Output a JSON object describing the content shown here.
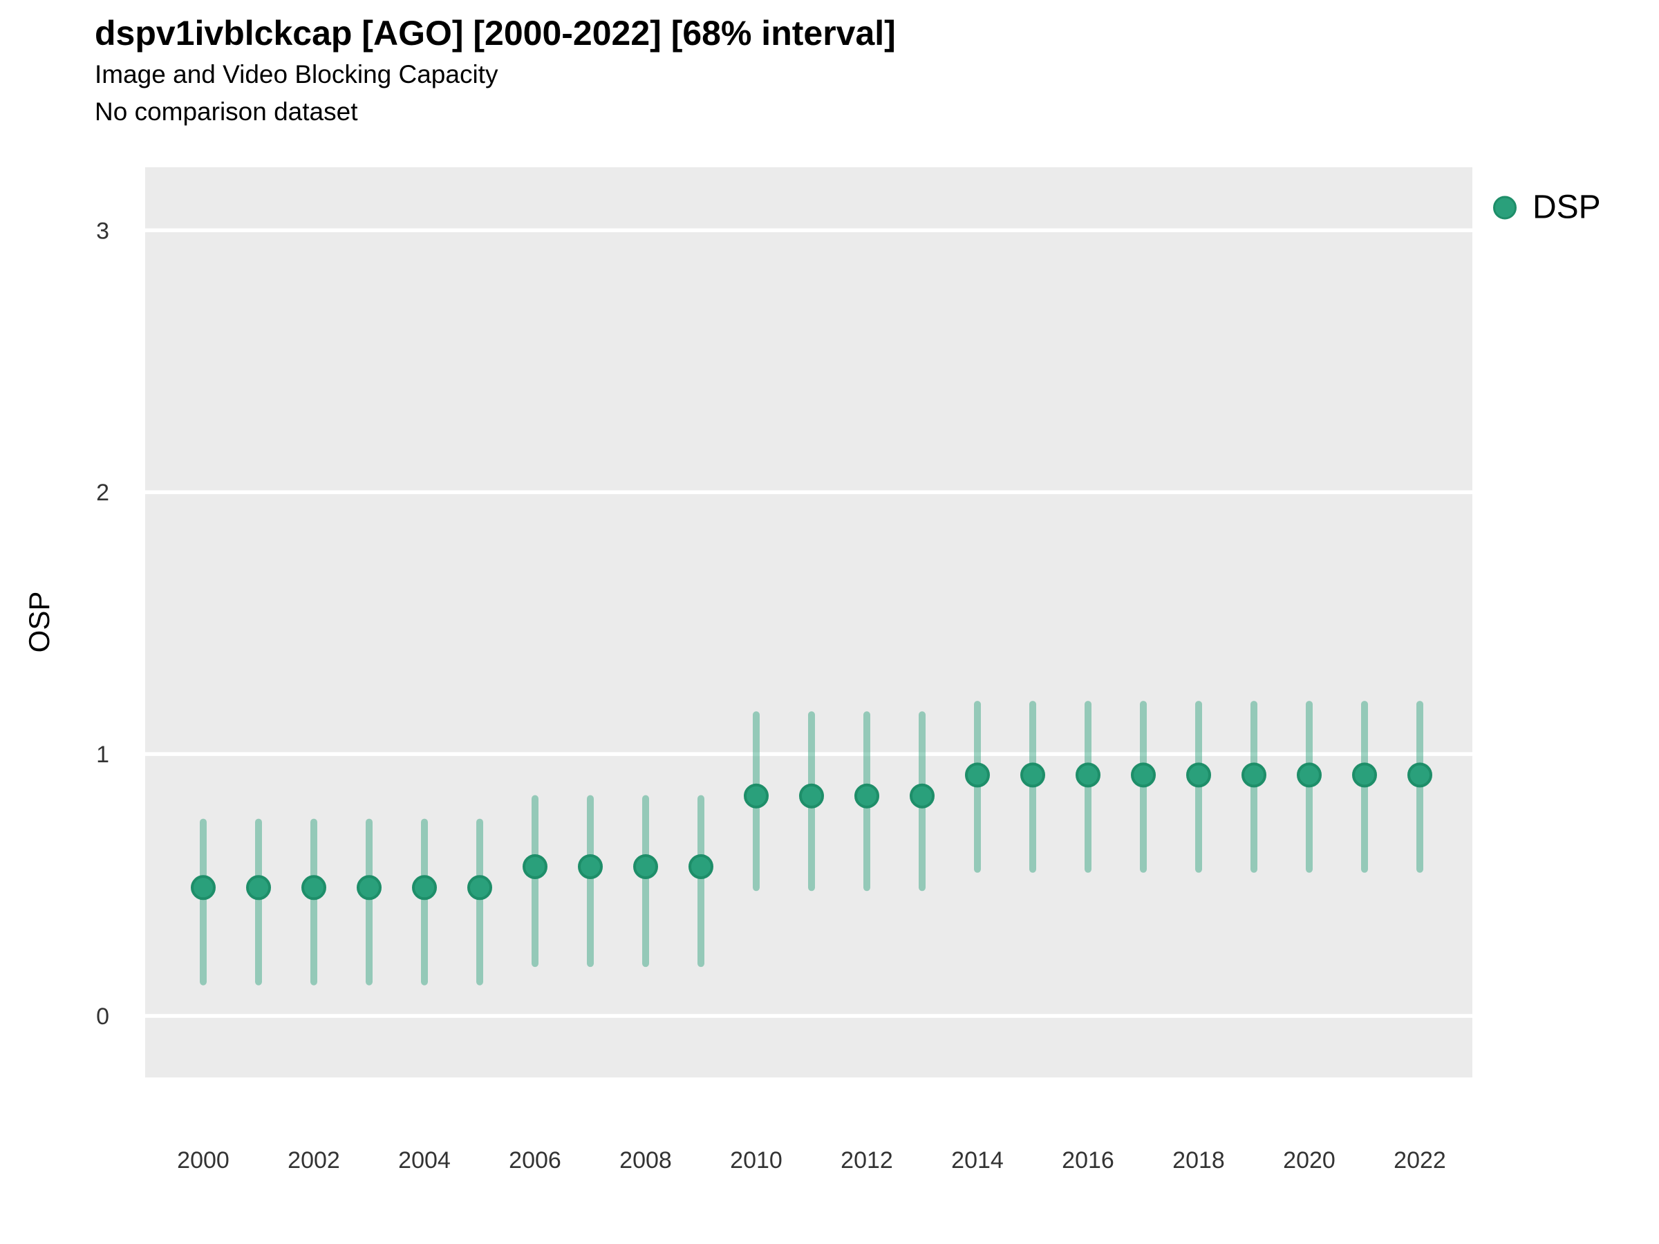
{
  "header": {
    "title": "dspv1ivblckcap [AGO] [2000-2022] [68% interval]",
    "subtitle": "Image and Video Blocking Capacity",
    "note": "No comparison dataset"
  },
  "legend": {
    "label": "DSP",
    "marker_color": "#2aa07b",
    "marker_stroke": "#1e8e69"
  },
  "colors": {
    "panel_bg": "#ebebeb",
    "gridline": "#ffffff",
    "point_fill": "#2aa07b",
    "point_stroke": "#1e8e69",
    "interval_line": "rgba(42,160,123,0.45)",
    "axis_text": "#333333",
    "title_text": "#000000"
  },
  "chart_data": {
    "type": "scatter",
    "subtype": "pointrange (dot with 68% credible interval bar per year)",
    "title": "dspv1ivblckcap [AGO] [2000-2022] [68% interval]",
    "subtitle": "Image and Video Blocking Capacity",
    "note": "No comparison dataset",
    "xlabel": "",
    "ylabel": "OSP",
    "legend_position": "right",
    "grid": "major horizontal white gridlines on gray panel, no minor grid",
    "xlim": [
      1998.95,
      2022.95
    ],
    "ylim": [
      -0.235,
      3.241
    ],
    "x_ticks": [
      2000,
      2002,
      2004,
      2006,
      2008,
      2010,
      2012,
      2014,
      2016,
      2018,
      2020,
      2022
    ],
    "y_ticks": [
      0,
      1,
      2,
      3
    ],
    "series": [
      {
        "name": "DSP",
        "x": [
          2000,
          2001,
          2002,
          2003,
          2004,
          2005,
          2006,
          2007,
          2008,
          2009,
          2010,
          2011,
          2012,
          2013,
          2014,
          2015,
          2016,
          2017,
          2018,
          2019,
          2020,
          2021,
          2022
        ],
        "y": [
          0.49,
          0.49,
          0.49,
          0.49,
          0.49,
          0.49,
          0.57,
          0.57,
          0.57,
          0.57,
          0.84,
          0.84,
          0.84,
          0.84,
          0.92,
          0.92,
          0.92,
          0.92,
          0.92,
          0.92,
          0.92,
          0.92,
          0.92
        ],
        "y_lo": [
          0.13,
          0.13,
          0.13,
          0.13,
          0.13,
          0.13,
          0.2,
          0.2,
          0.2,
          0.2,
          0.49,
          0.49,
          0.49,
          0.49,
          0.56,
          0.56,
          0.56,
          0.56,
          0.56,
          0.56,
          0.56,
          0.56,
          0.56
        ],
        "y_hi": [
          0.74,
          0.74,
          0.74,
          0.74,
          0.74,
          0.74,
          0.83,
          0.83,
          0.83,
          0.83,
          1.15,
          1.15,
          1.15,
          1.15,
          1.19,
          1.19,
          1.19,
          1.19,
          1.19,
          1.19,
          1.19,
          1.19,
          1.19
        ]
      }
    ]
  }
}
